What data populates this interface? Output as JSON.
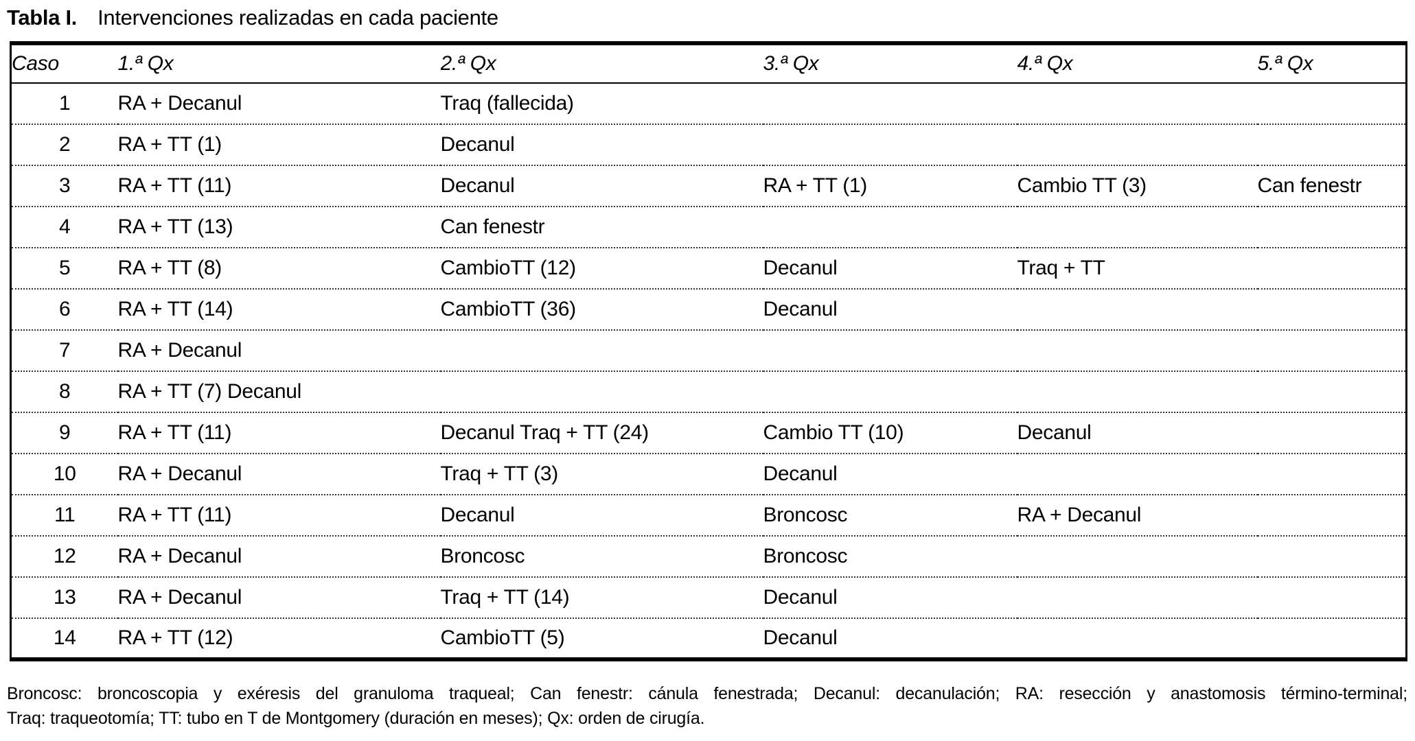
{
  "title": {
    "label_bold": "Tabla I.",
    "label_rest": "Intervenciones realizadas en cada paciente"
  },
  "table": {
    "headers": [
      "Caso",
      "1.ª Qx",
      "2.ª Qx",
      "3.ª Qx",
      "4.ª Qx",
      "5.ª Qx"
    ],
    "rows": [
      [
        "1",
        "RA + Decanul",
        "Traq (fallecida)",
        "",
        "",
        ""
      ],
      [
        "2",
        "RA + TT (1)",
        "Decanul",
        "",
        "",
        ""
      ],
      [
        "3",
        "RA + TT (11)",
        "Decanul",
        "RA + TT (1)",
        "Cambio TT (3)",
        "Can fenestr"
      ],
      [
        "4",
        "RA + TT (13)",
        "Can fenestr",
        "",
        "",
        ""
      ],
      [
        "5",
        "RA + TT (8)",
        "CambioTT (12)",
        "Decanul",
        "Traq + TT",
        ""
      ],
      [
        "6",
        "RA + TT (14)",
        "CambioTT (36)",
        "Decanul",
        "",
        ""
      ],
      [
        "7",
        "RA + Decanul",
        "",
        "",
        "",
        ""
      ],
      [
        "8",
        "RA + TT (7) Decanul",
        "",
        "",
        "",
        ""
      ],
      [
        "9",
        "RA + TT (11)",
        "Decanul Traq + TT (24)",
        "Cambio TT (10)",
        "Decanul",
        ""
      ],
      [
        "10",
        "RA + Decanul",
        "Traq + TT (3)",
        "Decanul",
        "",
        ""
      ],
      [
        "11",
        "RA + TT (11)",
        "Decanul",
        "Broncosc",
        "RA + Decanul",
        ""
      ],
      [
        "12",
        "RA + Decanul",
        "Broncosc",
        "Broncosc",
        "",
        ""
      ],
      [
        "13",
        "RA + Decanul",
        "Traq + TT (14)",
        "Decanul",
        "",
        ""
      ],
      [
        "14",
        "RA + TT (12)",
        "CambioTT (5)",
        "Decanul",
        "",
        ""
      ]
    ]
  },
  "footnote": {
    "line1": "Broncosc: broncoscopia y exéresis del granuloma traqueal; Can fenestr: cánula fenestrada; Decanul: decanulación; RA: resección y anastomosis término-terminal;",
    "line2": "Traq: traqueotomía; TT: tubo en T de Montgomery (duración en meses); Qx: orden de cirugía."
  }
}
